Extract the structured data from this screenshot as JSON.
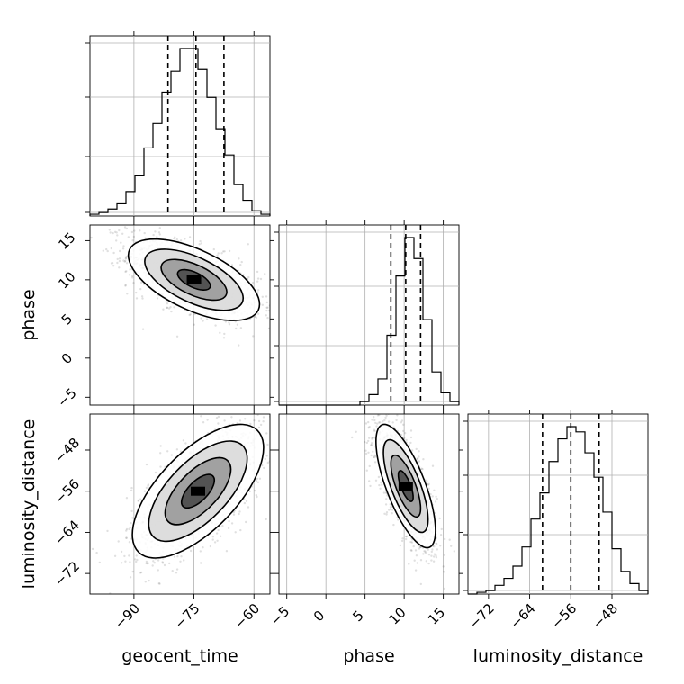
{
  "chart_data": {
    "type": "corner",
    "parameters": [
      "geocent_time",
      "phase",
      "luminosity_distance"
    ],
    "ranges": {
      "geocent_time": [
        -101,
        -56
      ],
      "phase": [
        -6,
        17
      ],
      "luminosity_distance": [
        -76,
        -41
      ]
    },
    "ticks": {
      "geocent_time": [
        -90,
        -75,
        -60
      ],
      "phase": [
        -5,
        0,
        5,
        10,
        15
      ],
      "luminosity_distance": [
        -72,
        -64,
        -56,
        -48
      ]
    },
    "tick_labels": {
      "geocent_time": [
        "−90",
        "−75",
        "−60"
      ],
      "phase": [
        "−5",
        "0",
        "5",
        "10",
        "15"
      ],
      "luminosity_distance": [
        "−72",
        "−64",
        "−56",
        "−48"
      ]
    },
    "axis_labels": {
      "x": [
        "geocent_time",
        "phase",
        "luminosity_distance"
      ],
      "y": [
        "",
        "phase",
        "luminosity_distance"
      ]
    },
    "histograms": [
      {
        "parameter": "geocent_time",
        "bin_edges": [
          -101,
          -98.75,
          -96.5,
          -94.25,
          -92,
          -89.75,
          -87.5,
          -85.25,
          -83,
          -80.75,
          -78.5,
          -76.25,
          -74,
          -71.75,
          -69.5,
          -67.25,
          -65,
          -62.75,
          -60.5,
          -58.25,
          -56
        ],
        "counts": [
          1,
          2,
          4,
          7,
          14,
          23,
          39,
          53,
          71,
          83,
          96,
          96,
          84,
          68,
          50,
          35,
          18,
          9,
          3,
          1
        ],
        "quantiles": [
          -81.5,
          -74.5,
          -67.5
        ]
      },
      {
        "parameter": "phase",
        "bin_edges": [
          -6,
          -4.85,
          -3.7,
          -2.55,
          -1.4,
          -0.25,
          0.9,
          2.05,
          3.2,
          4.35,
          5.5,
          6.65,
          7.8,
          8.95,
          10.1,
          11.25,
          12.4,
          13.55,
          14.7,
          15.85,
          17
        ],
        "counts": [
          0,
          0,
          0,
          0,
          0,
          0,
          0,
          0,
          0,
          2,
          6,
          15,
          40,
          74,
          96,
          84,
          49,
          19,
          7,
          2
        ],
        "quantiles": [
          8.3,
          10.2,
          12.1
        ]
      },
      {
        "parameter": "luminosity_distance",
        "bin_edges": [
          -76,
          -74.25,
          -72.5,
          -70.75,
          -69,
          -67.25,
          -65.5,
          -63.75,
          -62,
          -60.25,
          -58.5,
          -56.75,
          -55,
          -53.25,
          -51.5,
          -49.75,
          -48,
          -46.25,
          -44.5,
          -42.75,
          -41
        ],
        "counts": [
          0,
          1,
          2,
          5,
          9,
          16,
          27,
          43,
          58,
          76,
          89,
          96,
          93,
          81,
          67,
          47,
          26,
          13,
          6,
          2
        ],
        "quantiles": [
          -61.5,
          -56,
          -50.5
        ]
      }
    ],
    "correlations": [
      {
        "x": "geocent_time",
        "y": "phase",
        "mean": [
          -75,
          10
        ],
        "sd": [
          8.2,
          2.6
        ],
        "rho": -0.6
      },
      {
        "x": "geocent_time",
        "y": "luminosity_distance",
        "mean": [
          -74,
          -56
        ],
        "sd": [
          8.2,
          6.5
        ],
        "rho": 0.65
      },
      {
        "x": "phase",
        "y": "luminosity_distance",
        "mean": [
          10.2,
          -55
        ],
        "sd": [
          1.9,
          6.0
        ],
        "rho": -0.72
      }
    ],
    "contour_levels_sigma": [
      0.5,
      1.0,
      1.5,
      2.0
    ]
  }
}
